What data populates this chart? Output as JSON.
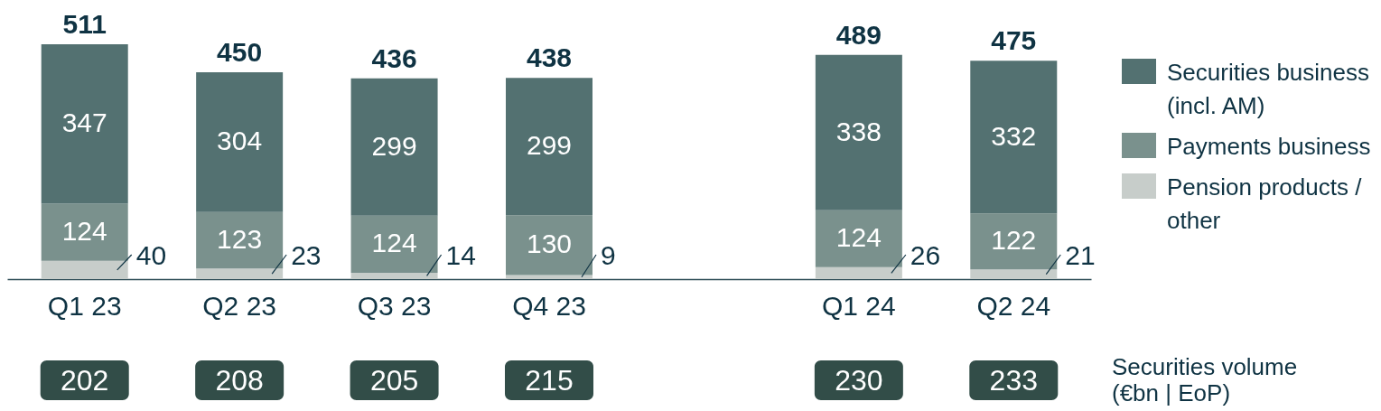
{
  "chart_data": {
    "type": "bar",
    "stacked": true,
    "data_labels": true,
    "legend": "right",
    "categories": [
      "Q1 23",
      "Q2 23",
      "Q3 23",
      "Q4 23",
      null,
      "Q1 24",
      "Q2 24"
    ],
    "series": [
      {
        "name": "Pension products /\nother",
        "color": "#c7cdca",
        "values": [
          40,
          23,
          14,
          9,
          null,
          26,
          21
        ]
      },
      {
        "name": "Payments business",
        "color": "#7a918d",
        "values": [
          124,
          123,
          124,
          130,
          null,
          124,
          122
        ]
      },
      {
        "name": "Securities business\n(incl. AM)",
        "color": "#537171",
        "values": [
          347,
          304,
          299,
          299,
          null,
          338,
          332
        ]
      }
    ],
    "totals": [
      "511",
      "450",
      "436",
      "438",
      null,
      "489",
      "475"
    ],
    "annotations": [
      "202",
      "208",
      "205",
      "215",
      "230",
      "233",
      "Securities volume\n(€bn | EoP)"
    ]
  }
}
